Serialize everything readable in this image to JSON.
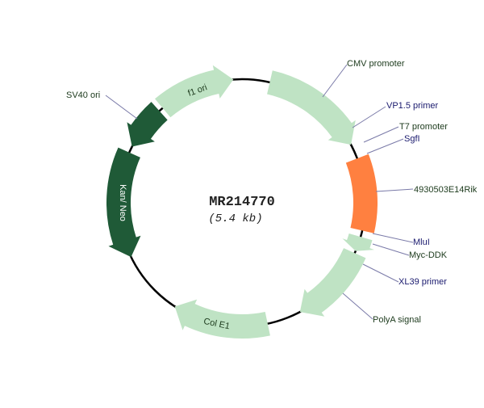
{
  "plasmid": {
    "name": "MR214770",
    "size": "(5.4 kb)"
  },
  "colors": {
    "backbone": "#000000",
    "light_feature": "#bfe3c4",
    "dark_feature": "#1f5a37",
    "insert": "#ff8040",
    "label_dark": "#1c3a1c",
    "label_blue": "#1a1a6e",
    "leader": "#7a7aa8"
  },
  "features": [
    {
      "id": "f1-ori",
      "label": "f1 ori",
      "style": "light",
      "arrow": "cw"
    },
    {
      "id": "cmv-promoter",
      "label": "CMV promoter",
      "style": "light",
      "arrow": "cw"
    },
    {
      "id": "insert",
      "label": "4930503E14Rik",
      "style": "insert",
      "arrow": "none"
    },
    {
      "id": "myc-ddk",
      "label": "Myc-DDK",
      "style": "light",
      "arrow": "cw"
    },
    {
      "id": "polya-signal",
      "label": "PolyA signal",
      "style": "light",
      "arrow": "cw"
    },
    {
      "id": "col-e1",
      "label": "Col E1",
      "style": "light",
      "arrow": "cw"
    },
    {
      "id": "kan-neo",
      "label": "Kan/ Neo",
      "style": "dark",
      "arrow": "ccw"
    },
    {
      "id": "sv40-ori",
      "label": "SV40 ori",
      "style": "dark",
      "arrow": "ccw"
    }
  ],
  "labels": {
    "cmv": "CMV promoter",
    "vp15": "VP1.5 primer",
    "t7": "T7 promoter",
    "sgfi": "SgfI",
    "insert": "4930503E14Rik",
    "mlui": "MluI",
    "mycddk": "Myc-DDK",
    "xl39": "XL39 primer",
    "polya": "PolyA signal",
    "sv40": "SV40 ori",
    "f1": "f1 ori",
    "kan": "Kan/ Neo",
    "cole1": "Col E1"
  }
}
